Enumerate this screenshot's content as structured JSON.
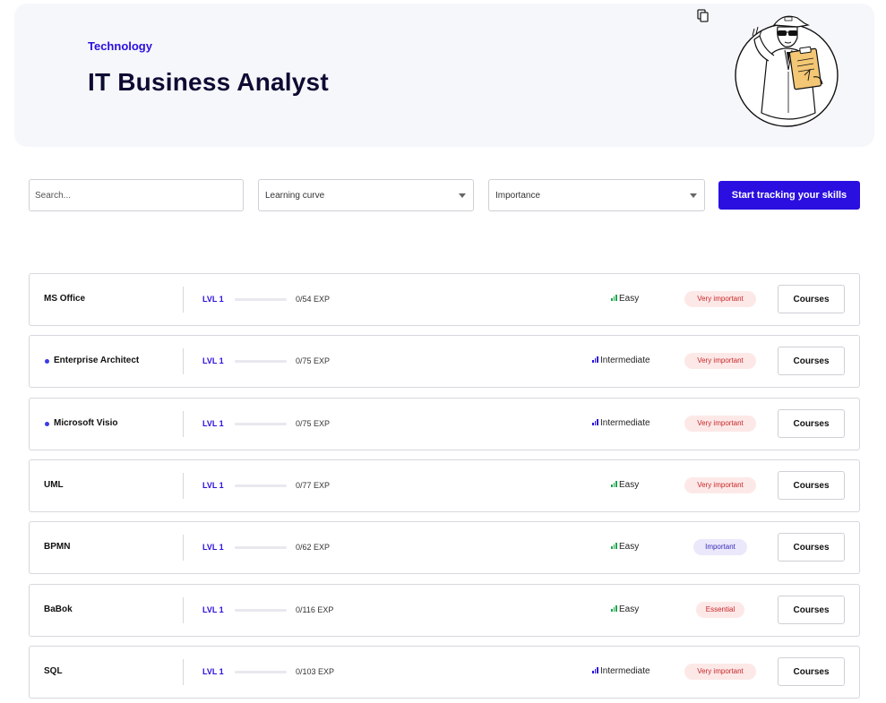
{
  "header": {
    "category": "Technology",
    "title": "IT Business Analyst"
  },
  "icons": {
    "copy": "copy-icon",
    "illustration": "analyst-illustration"
  },
  "filters": {
    "search_placeholder": "Search...",
    "learning_curve_label": "Learning curve",
    "importance_label": "Importance",
    "track_button_label": "Start tracking your skills"
  },
  "colors": {
    "accent": "#2a0fe0",
    "progress": "#e8157c",
    "easy": "#1aa64b",
    "intermediate": "#2a0fe0"
  },
  "skills": [
    {
      "name": "MS Office",
      "dot": false,
      "level": "LVL 1",
      "exp": "0/54 EXP",
      "progress": 1.0,
      "curve": "Easy",
      "importance": "Very important",
      "courses_label": "Courses"
    },
    {
      "name": "Enterprise Architect",
      "dot": true,
      "level": "LVL 1",
      "exp": "0/75 EXP",
      "progress": 1.0,
      "curve": "Intermediate",
      "importance": "Very important",
      "courses_label": "Courses"
    },
    {
      "name": "Microsoft Visio",
      "dot": true,
      "level": "LVL 1",
      "exp": "0/75 EXP",
      "progress": 1.0,
      "curve": "Intermediate",
      "importance": "Very important",
      "courses_label": "Courses"
    },
    {
      "name": "UML",
      "dot": false,
      "level": "LVL 1",
      "exp": "0/77 EXP",
      "progress": 1.0,
      "curve": "Easy",
      "importance": "Very important",
      "courses_label": "Courses"
    },
    {
      "name": "BPMN",
      "dot": false,
      "level": "LVL 1",
      "exp": "0/62 EXP",
      "progress": 1.0,
      "curve": "Easy",
      "importance": "Important",
      "courses_label": "Courses"
    },
    {
      "name": "BaBok",
      "dot": false,
      "level": "LVL 1",
      "exp": "0/116 EXP",
      "progress": 1.0,
      "curve": "Easy",
      "importance": "Essential",
      "courses_label": "Courses"
    },
    {
      "name": "SQL",
      "dot": false,
      "level": "LVL 1",
      "exp": "0/103 EXP",
      "progress": 1.0,
      "curve": "Intermediate",
      "importance": "Very important",
      "courses_label": "Courses"
    }
  ]
}
